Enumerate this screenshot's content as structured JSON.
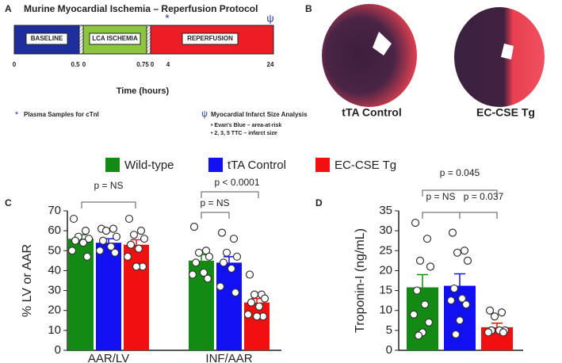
{
  "panel_labels": [
    "A",
    "B",
    "C",
    "D"
  ],
  "protocol": {
    "title": "Murine Myocardial Ischemia – Reperfusion Protocol",
    "phases": [
      "BASELINE",
      "LCA ISCHEMIA",
      "REPERFUSION"
    ],
    "ticks": [
      "0",
      "0.5",
      "0",
      "0.75",
      "0",
      "4",
      "24"
    ],
    "xlabel": "Time (hours)",
    "markers": [
      "*",
      "ψ"
    ],
    "notes": [
      "Plasma Samples for cTnI",
      "Myocardial Infarct Size Analysis"
    ],
    "bullets": [
      "• Evan's Blue – area-at-risk",
      "• 2, 3, 5 TTC – infarct size"
    ]
  },
  "images": {
    "labels": [
      "tTA Control",
      "EC-CSE Tg"
    ]
  },
  "chart_data": [
    {
      "type": "bar",
      "ylabel": "% LV or AAR",
      "categories": [
        "AAR/LV",
        "INF/AAR"
      ],
      "ylim": [
        0,
        70
      ],
      "yticks": [
        0,
        10,
        20,
        30,
        40,
        50,
        60,
        70
      ],
      "series": [
        {
          "name": "Wild-type",
          "color": "#138a13",
          "values": [
            56,
            45
          ],
          "errors": [
            2,
            3
          ],
          "points": [
            [
              66,
              60,
              57,
              56,
              55,
              54,
              50,
              47
            ],
            [
              62,
              50,
              49,
              47,
              44,
              39,
              38,
              36
            ]
          ]
        },
        {
          "name": "tTA Control",
          "color": "#1010f0",
          "values": [
            54,
            44
          ],
          "errors": [
            2,
            3
          ],
          "points": [
            [
              61,
              61,
              60,
              57,
              55,
              52,
              50,
              49
            ],
            [
              59,
              56,
              49,
              47,
              44,
              41,
              32,
              29
            ]
          ]
        },
        {
          "name": "EC-CSE Tg",
          "color": "#f01010",
          "values": [
            53,
            24
          ],
          "errors": [
            2.5,
            2
          ],
          "points": [
            [
              66,
              60,
              58,
              56,
              53,
              51,
              47,
              42,
              42
            ],
            [
              38,
              28,
              28,
              26,
              24,
              22,
              18,
              17,
              17
            ]
          ]
        }
      ],
      "annotations": [
        "p = NS",
        "p < 0.0001",
        "p = NS"
      ]
    },
    {
      "type": "bar",
      "ylabel": "Troponin-I (ng/mL)",
      "categories": [
        null
      ],
      "ylim": [
        0,
        35
      ],
      "yticks": [
        0,
        5,
        10,
        15,
        20,
        25,
        30,
        35
      ],
      "series": [
        {
          "color": "#138a13",
          "values": [
            15.8
          ],
          "errors": [
            3.2
          ],
          "points": [
            [
              32,
              28,
              22.5,
              21,
              15,
              11.5,
              9,
              7,
              4.5,
              3.7
            ]
          ]
        },
        {
          "color": "#1010f0",
          "values": [
            16.2
          ],
          "errors": [
            3
          ],
          "points": [
            [
              29.5,
              25,
              24.5,
              22.5,
              15.5,
              13,
              12.5,
              11.5,
              7.5,
              4
            ]
          ]
        },
        {
          "color": "#f01010",
          "values": [
            5.8
          ],
          "errors": [
            1
          ],
          "points": [
            [
              10,
              9.5,
              8.5,
              5,
              5,
              5,
              4.5,
              4.5
            ]
          ]
        }
      ],
      "annotations": [
        "p = 0.045",
        "p = NS",
        "p = 0.037"
      ]
    }
  ]
}
